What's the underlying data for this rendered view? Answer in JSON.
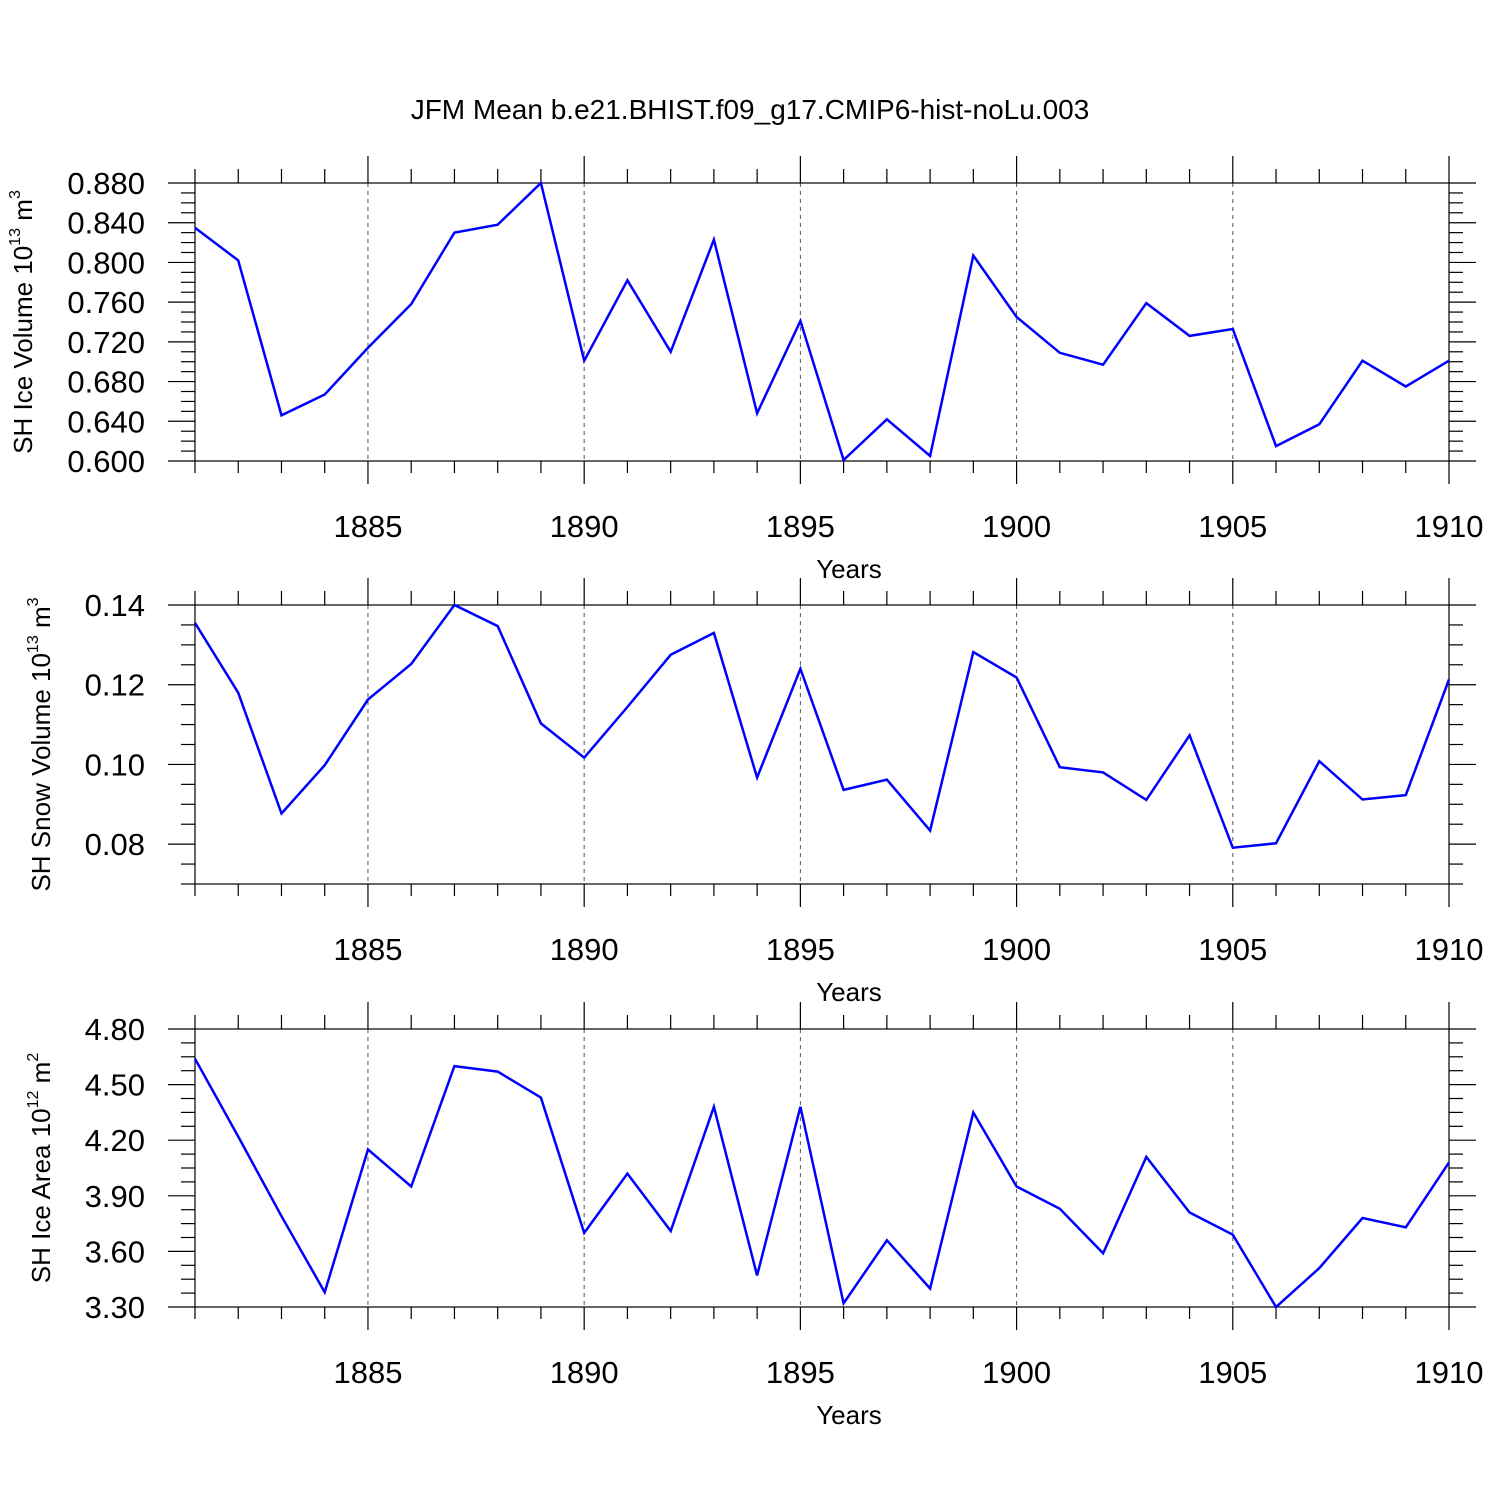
{
  "title": "JFM Mean b.e21.BHIST.f09_g17.CMIP6-hist-noLu.003",
  "colors": {
    "series": "#0000ff",
    "axes": "#000000",
    "grid": "#555555"
  },
  "chart_data": [
    {
      "type": "line",
      "name": "ice-volume",
      "ylabel": {
        "main": "SH Ice Volume 10",
        "exp": "13",
        "unit": " m",
        "unit_exp": "3"
      },
      "xlabel": "Years",
      "xlim": [
        1881,
        1910
      ],
      "ylim": [
        0.6,
        0.88
      ],
      "xticks": [
        "1885",
        "1890",
        "1895",
        "1900",
        "1905",
        "1910"
      ],
      "yticks": [
        "0.600",
        "0.640",
        "0.680",
        "0.720",
        "0.760",
        "0.800",
        "0.840",
        "0.880"
      ],
      "x": [
        1881,
        1882,
        1883,
        1884,
        1885,
        1886,
        1887,
        1888,
        1889,
        1890,
        1891,
        1892,
        1893,
        1894,
        1895,
        1896,
        1897,
        1898,
        1899,
        1900,
        1901,
        1902,
        1903,
        1904,
        1905,
        1906,
        1907,
        1908,
        1909,
        1910
      ],
      "values": [
        0.835,
        0.802,
        0.646,
        0.667,
        0.714,
        0.758,
        0.83,
        0.838,
        0.88,
        0.701,
        0.782,
        0.71,
        0.823,
        0.648,
        0.741,
        0.601,
        0.642,
        0.605,
        0.807,
        0.745,
        0.709,
        0.697,
        0.759,
        0.726,
        0.733,
        0.615,
        0.637,
        0.701,
        0.675,
        0.701
      ]
    },
    {
      "type": "line",
      "name": "snow-volume",
      "ylabel": {
        "main": "SH Snow Volume 10",
        "exp": "13",
        "unit": " m",
        "unit_exp": "3"
      },
      "xlabel": "Years",
      "xlim": [
        1881,
        1910
      ],
      "ylim": [
        0.07,
        0.14
      ],
      "xticks": [
        "1885",
        "1890",
        "1895",
        "1900",
        "1905",
        "1910"
      ],
      "yticks": [
        "0.08",
        "0.10",
        "0.12",
        "0.14"
      ],
      "x": [
        1881,
        1882,
        1883,
        1884,
        1885,
        1886,
        1887,
        1888,
        1889,
        1890,
        1891,
        1892,
        1893,
        1894,
        1895,
        1896,
        1897,
        1898,
        1899,
        1900,
        1901,
        1902,
        1903,
        1904,
        1905,
        1906,
        1907,
        1908,
        1909,
        1910
      ],
      "values": [
        0.1355,
        0.118,
        0.0877,
        0.0998,
        0.1163,
        0.1252,
        0.14,
        0.1347,
        0.1103,
        0.1017,
        0.1144,
        0.1275,
        0.133,
        0.0967,
        0.124,
        0.0936,
        0.0962,
        0.0834,
        0.1282,
        0.1218,
        0.0993,
        0.098,
        0.0911,
        0.1073,
        0.0791,
        0.0802,
        0.1008,
        0.0912,
        0.0923,
        0.1213
      ]
    },
    {
      "type": "line",
      "name": "ice-area",
      "ylabel": {
        "main": "SH Ice Area 10",
        "exp": "12",
        "unit": " m",
        "unit_exp": "2"
      },
      "xlabel": "Years",
      "xlim": [
        1881,
        1910
      ],
      "ylim": [
        3.3,
        4.8
      ],
      "xticks": [
        "1885",
        "1890",
        "1895",
        "1900",
        "1905",
        "1910"
      ],
      "yticks": [
        "3.30",
        "3.60",
        "3.90",
        "4.20",
        "4.50",
        "4.80"
      ],
      "x": [
        1881,
        1882,
        1883,
        1884,
        1885,
        1886,
        1887,
        1888,
        1889,
        1890,
        1891,
        1892,
        1893,
        1894,
        1895,
        1896,
        1897,
        1898,
        1899,
        1900,
        1901,
        1902,
        1903,
        1904,
        1905,
        1906,
        1907,
        1908,
        1909,
        1910
      ],
      "values": [
        4.64,
        4.22,
        3.79,
        3.38,
        4.15,
        3.95,
        4.6,
        4.57,
        4.43,
        3.7,
        4.02,
        3.71,
        4.38,
        3.47,
        4.38,
        3.32,
        3.66,
        3.4,
        4.35,
        3.95,
        3.83,
        3.59,
        4.11,
        3.81,
        3.69,
        3.3,
        3.51,
        3.78,
        3.73,
        4.08
      ]
    }
  ]
}
